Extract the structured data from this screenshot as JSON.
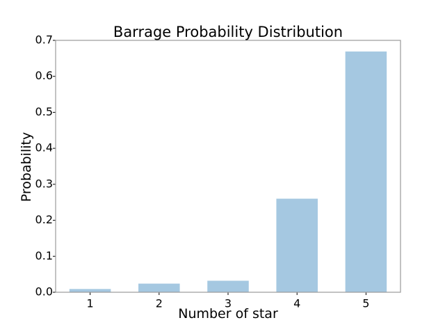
{
  "chart_data": {
    "type": "bar",
    "title": "Barrage Probability Distribution",
    "xlabel": "Number of star",
    "ylabel": "Probability",
    "categories": [
      "1",
      "2",
      "3",
      "4",
      "5"
    ],
    "values": [
      0.009,
      0.024,
      0.032,
      0.26,
      0.669
    ],
    "ylim": [
      0,
      0.7
    ],
    "yticks": [
      "0.0",
      "0.1",
      "0.2",
      "0.3",
      "0.4",
      "0.5",
      "0.6",
      "0.7"
    ],
    "grid": false,
    "colors": {
      "bar": "#a5c8e1",
      "frame": "#999999",
      "text": "#000000"
    }
  }
}
